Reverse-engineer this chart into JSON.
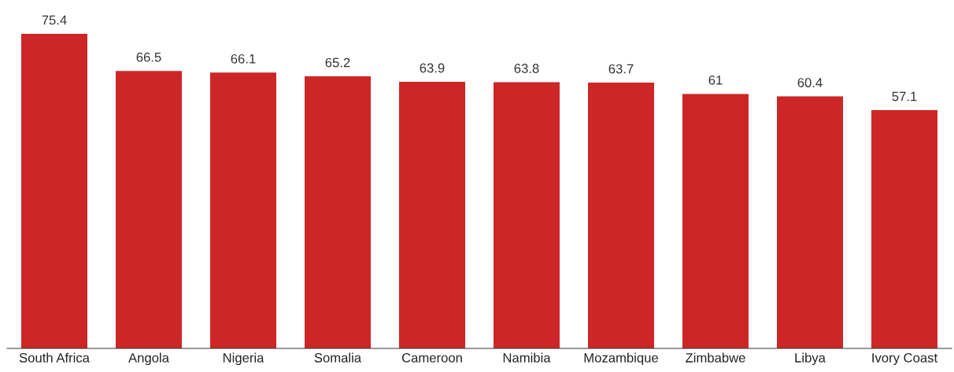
{
  "chart_data": {
    "type": "bar",
    "categories": [
      "South Africa",
      "Angola",
      "Nigeria",
      "Somalia",
      "Cameroon",
      "Namibia",
      "Mozambique",
      "Zimbabwe",
      "Libya",
      "Ivory Coast"
    ],
    "values": [
      75.4,
      66.5,
      66.1,
      65.2,
      63.9,
      63.8,
      63.7,
      61,
      60.4,
      57.1
    ],
    "color": "#cc2626",
    "tick_labels": "x",
    "data_labels": true,
    "grid": false,
    "legend": false
  }
}
